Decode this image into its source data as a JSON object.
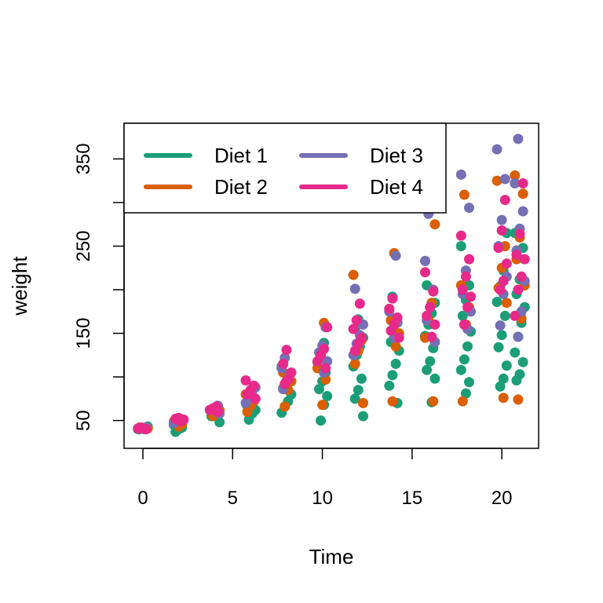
{
  "chart_data": {
    "type": "scatter",
    "title": "",
    "xlabel": "Time",
    "ylabel": "weight",
    "xlim": [
      -1.05,
      22.05
    ],
    "ylim": [
      18.1,
      390.9
    ],
    "xticks": [
      0,
      5,
      10,
      15,
      20
    ],
    "yticks": [
      50,
      150,
      250,
      350
    ],
    "grid": false,
    "legend": {
      "position": "top-left",
      "columns": 2
    },
    "series": [
      {
        "name": "Diet 1",
        "color": "#1B9E77",
        "points": [
          [
            0,
            40
          ],
          [
            0,
            42
          ],
          [
            0,
            41
          ],
          [
            0,
            43
          ],
          [
            2,
            37
          ],
          [
            2,
            40
          ],
          [
            2,
            42
          ],
          [
            2,
            45
          ],
          [
            2,
            49
          ],
          [
            2,
            50
          ],
          [
            4,
            48
          ],
          [
            4,
            55
          ],
          [
            4,
            58
          ],
          [
            4,
            60
          ],
          [
            4,
            62
          ],
          [
            6,
            51
          ],
          [
            6,
            58
          ],
          [
            6,
            62
          ],
          [
            6,
            67
          ],
          [
            6,
            72
          ],
          [
            6,
            76
          ],
          [
            8,
            59
          ],
          [
            8,
            66
          ],
          [
            8,
            72
          ],
          [
            8,
            80
          ],
          [
            8,
            87
          ],
          [
            8,
            94
          ],
          [
            8,
            104
          ],
          [
            8,
            112
          ],
          [
            10,
            50
          ],
          [
            10,
            68
          ],
          [
            10,
            78
          ],
          [
            10,
            86
          ],
          [
            10,
            95
          ],
          [
            10,
            105
          ],
          [
            10,
            117
          ],
          [
            10,
            128
          ],
          [
            10,
            139
          ],
          [
            12,
            55
          ],
          [
            12,
            75
          ],
          [
            12,
            85
          ],
          [
            12,
            98
          ],
          [
            12,
            112
          ],
          [
            12,
            125
          ],
          [
            12,
            135
          ],
          [
            12,
            145
          ],
          [
            12,
            155
          ],
          [
            12,
            166
          ],
          [
            14,
            70
          ],
          [
            14,
            90
          ],
          [
            14,
            102
          ],
          [
            14,
            115
          ],
          [
            14,
            130
          ],
          [
            14,
            140
          ],
          [
            14,
            152
          ],
          [
            14,
            163
          ],
          [
            14,
            178
          ],
          [
            14,
            192
          ],
          [
            16,
            71
          ],
          [
            16,
            98
          ],
          [
            16,
            108
          ],
          [
            16,
            118
          ],
          [
            16,
            133
          ],
          [
            16,
            147
          ],
          [
            16,
            160
          ],
          [
            16,
            173
          ],
          [
            16,
            185
          ],
          [
            16,
            205
          ],
          [
            18,
            81
          ],
          [
            18,
            94
          ],
          [
            18,
            108
          ],
          [
            18,
            120
          ],
          [
            18,
            135
          ],
          [
            18,
            152
          ],
          [
            18,
            170
          ],
          [
            18,
            188
          ],
          [
            18,
            205
          ],
          [
            18,
            250
          ],
          [
            20,
            89
          ],
          [
            20,
            98
          ],
          [
            20,
            113
          ],
          [
            20,
            134
          ],
          [
            20,
            148
          ],
          [
            20,
            170
          ],
          [
            20,
            186
          ],
          [
            20,
            204
          ],
          [
            20,
            222
          ],
          [
            20,
            265
          ],
          [
            21,
            96
          ],
          [
            21,
            103
          ],
          [
            21,
            117
          ],
          [
            21,
            128
          ],
          [
            21,
            146
          ],
          [
            21,
            162
          ],
          [
            21,
            180
          ],
          [
            21,
            195
          ],
          [
            21,
            212
          ],
          [
            21,
            248
          ],
          [
            21,
            265
          ]
        ]
      },
      {
        "name": "Diet 2",
        "color": "#D95F02",
        "points": [
          [
            0,
            40
          ],
          [
            0,
            41
          ],
          [
            0,
            42
          ],
          [
            2,
            43
          ],
          [
            2,
            46
          ],
          [
            2,
            49
          ],
          [
            4,
            55
          ],
          [
            4,
            58
          ],
          [
            4,
            62
          ],
          [
            6,
            60
          ],
          [
            6,
            67
          ],
          [
            6,
            72
          ],
          [
            6,
            80
          ],
          [
            8,
            66
          ],
          [
            8,
            85
          ],
          [
            8,
            95
          ],
          [
            8,
            105
          ],
          [
            10,
            68
          ],
          [
            10,
            97
          ],
          [
            10,
            110
          ],
          [
            10,
            125
          ],
          [
            10,
            162
          ],
          [
            12,
            70
          ],
          [
            12,
            115
          ],
          [
            12,
            130
          ],
          [
            12,
            142
          ],
          [
            12,
            217
          ],
          [
            14,
            72
          ],
          [
            14,
            135
          ],
          [
            14,
            150
          ],
          [
            14,
            165
          ],
          [
            14,
            242
          ],
          [
            16,
            72
          ],
          [
            16,
            145
          ],
          [
            16,
            165
          ],
          [
            16,
            185
          ],
          [
            16,
            275
          ],
          [
            18,
            72
          ],
          [
            18,
            160
          ],
          [
            18,
            180
          ],
          [
            18,
            205
          ],
          [
            18,
            309
          ],
          [
            20,
            76
          ],
          [
            20,
            185
          ],
          [
            20,
            202
          ],
          [
            20,
            225
          ],
          [
            20,
            250
          ],
          [
            20,
            325
          ],
          [
            21,
            74
          ],
          [
            21,
            167
          ],
          [
            21,
            205
          ],
          [
            21,
            235
          ],
          [
            21,
            260
          ],
          [
            21,
            310
          ],
          [
            21,
            331
          ]
        ]
      },
      {
        "name": "Diet 3",
        "color": "#7570B3",
        "points": [
          [
            0,
            40
          ],
          [
            0,
            41
          ],
          [
            0,
            42
          ],
          [
            2,
            47
          ],
          [
            2,
            50
          ],
          [
            2,
            52
          ],
          [
            4,
            58
          ],
          [
            4,
            62
          ],
          [
            4,
            64
          ],
          [
            4,
            67
          ],
          [
            6,
            70
          ],
          [
            6,
            76
          ],
          [
            6,
            80
          ],
          [
            6,
            88
          ],
          [
            8,
            86
          ],
          [
            8,
            95
          ],
          [
            8,
            103
          ],
          [
            8,
            110
          ],
          [
            8,
            122
          ],
          [
            10,
            105
          ],
          [
            10,
            118
          ],
          [
            10,
            128
          ],
          [
            10,
            136
          ],
          [
            10,
            157
          ],
          [
            12,
            125
          ],
          [
            12,
            138
          ],
          [
            12,
            148
          ],
          [
            12,
            160
          ],
          [
            12,
            201
          ],
          [
            14,
            145
          ],
          [
            14,
            162
          ],
          [
            14,
            175
          ],
          [
            14,
            190
          ],
          [
            14,
            239
          ],
          [
            16,
            140
          ],
          [
            16,
            165
          ],
          [
            16,
            180
          ],
          [
            16,
            200
          ],
          [
            16,
            233
          ],
          [
            16,
            287
          ],
          [
            18,
            155
          ],
          [
            18,
            175
          ],
          [
            18,
            195
          ],
          [
            18,
            222
          ],
          [
            18,
            294
          ],
          [
            18,
            332
          ],
          [
            20,
            159
          ],
          [
            20,
            195
          ],
          [
            20,
            215
          ],
          [
            20,
            250
          ],
          [
            20,
            280
          ],
          [
            20,
            327
          ],
          [
            20,
            361
          ],
          [
            21,
            146
          ],
          [
            21,
            175
          ],
          [
            21,
            210
          ],
          [
            21,
            245
          ],
          [
            21,
            270
          ],
          [
            21,
            290
          ],
          [
            21,
            322
          ],
          [
            21,
            373
          ]
        ]
      },
      {
        "name": "Diet 4",
        "color": "#E7298A",
        "points": [
          [
            0,
            40
          ],
          [
            0,
            41
          ],
          [
            0,
            42
          ],
          [
            2,
            49
          ],
          [
            2,
            51
          ],
          [
            2,
            52
          ],
          [
            2,
            53
          ],
          [
            4,
            60
          ],
          [
            4,
            62
          ],
          [
            4,
            64
          ],
          [
            4,
            66
          ],
          [
            6,
            75
          ],
          [
            6,
            80
          ],
          [
            6,
            85
          ],
          [
            6,
            90
          ],
          [
            6,
            96
          ],
          [
            8,
            92
          ],
          [
            8,
            97
          ],
          [
            8,
            105
          ],
          [
            8,
            115
          ],
          [
            8,
            131
          ],
          [
            10,
            110
          ],
          [
            10,
            118
          ],
          [
            10,
            125
          ],
          [
            10,
            132
          ],
          [
            10,
            157
          ],
          [
            12,
            130
          ],
          [
            12,
            138
          ],
          [
            12,
            145
          ],
          [
            12,
            155
          ],
          [
            12,
            165
          ],
          [
            12,
            184
          ],
          [
            14,
            145
          ],
          [
            14,
            153
          ],
          [
            14,
            160
          ],
          [
            14,
            168
          ],
          [
            14,
            178
          ],
          [
            14,
            190
          ],
          [
            16,
            146
          ],
          [
            16,
            160
          ],
          [
            16,
            170
          ],
          [
            16,
            180
          ],
          [
            16,
            198
          ],
          [
            16,
            220
          ],
          [
            18,
            160
          ],
          [
            18,
            180
          ],
          [
            18,
            192
          ],
          [
            18,
            200
          ],
          [
            18,
            215
          ],
          [
            18,
            235
          ],
          [
            18,
            262
          ],
          [
            20,
            200
          ],
          [
            20,
            210
          ],
          [
            20,
            230
          ],
          [
            20,
            248
          ],
          [
            20,
            268
          ],
          [
            20,
            303
          ],
          [
            21,
            170
          ],
          [
            21,
            200
          ],
          [
            21,
            215
          ],
          [
            21,
            235
          ],
          [
            21,
            240
          ],
          [
            21,
            264
          ],
          [
            21,
            322
          ]
        ]
      }
    ]
  }
}
